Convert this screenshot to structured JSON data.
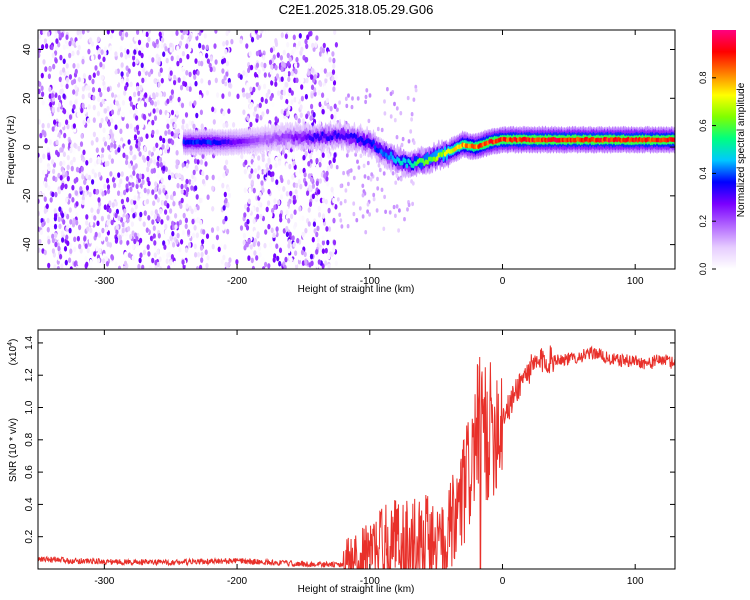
{
  "figure_title": "C2E1.2025.318.05.29.G06",
  "chart_data": [
    {
      "type": "heatmap",
      "title": "C2E1.2025.318.05.29.G06",
      "xlabel": "Height of straight line (km)",
      "ylabel": "Frequency (Hz)",
      "xlim": [
        -350,
        130
      ],
      "ylim": [
        -50,
        48
      ],
      "x_ticks": [
        -300,
        -200,
        -100,
        0,
        100
      ],
      "y_ticks": [
        -40,
        -20,
        0,
        20,
        40
      ],
      "colorbar": {
        "label": "Normalized spectral amplitude",
        "range": [
          0,
          1
        ],
        "ticks": [
          "0.0",
          "0.2",
          "0.4",
          "0.6",
          "0.8"
        ],
        "tick_values": [
          0,
          0.2,
          0.4,
          0.6,
          0.8
        ],
        "colors": [
          "#ffffff",
          "#e6ccff",
          "#b266ff",
          "#7a00ff",
          "#0000ff",
          "#00c8ff",
          "#00ff80",
          "#80ff00",
          "#ffff00",
          "#ff8000",
          "#ff0000",
          "#ff0080"
        ]
      },
      "ridge": {
        "x": [
          -240,
          -220,
          -200,
          -180,
          -160,
          -140,
          -120,
          -100,
          -90,
          -80,
          -70,
          -60,
          -50,
          -40,
          -30,
          -20,
          -10,
          0,
          20,
          40,
          60,
          80,
          100,
          130
        ],
        "frequency": [
          2,
          2,
          2,
          3,
          4,
          4,
          5,
          2,
          -2,
          -5,
          -7,
          -6,
          -4,
          -2,
          1,
          0,
          2,
          3,
          3,
          3,
          3,
          3,
          3,
          3
        ],
        "amplitude": [
          0.4,
          0.4,
          0.3,
          0.2,
          0.25,
          0.35,
          0.35,
          0.4,
          0.45,
          0.5,
          0.55,
          0.65,
          0.7,
          0.75,
          0.85,
          0.9,
          0.95,
          0.95,
          0.97,
          0.97,
          0.97,
          0.97,
          0.97,
          0.95
        ]
      },
      "noise_region_x": [
        -350,
        -125
      ]
    },
    {
      "type": "line",
      "xlabel": "Height of straight line (km)",
      "ylabel": "SNR (10 * v/v)",
      "y_scale_note": "(x10",
      "y_scale_exponent": "4",
      "y_scale_close": ")",
      "xlim": [
        -350,
        130
      ],
      "ylim": [
        0,
        14800
      ],
      "x_ticks": [
        -300,
        -200,
        -100,
        0,
        100
      ],
      "y_ticks": [
        2000,
        4000,
        6000,
        8000,
        10000,
        12000,
        14000
      ],
      "y_tick_labels": [
        "0.2",
        "0.4",
        "0.6",
        "0.8",
        "1.0",
        "1.2",
        "1.4"
      ],
      "series": [
        {
          "color": "#e8302a",
          "x": [
            -350,
            -300,
            -250,
            -200,
            -150,
            -120,
            -110,
            -100,
            -90,
            -80,
            -70,
            -60,
            -50,
            -45,
            -40,
            -35,
            -30,
            -25,
            -20,
            -18,
            -15,
            -12,
            -10,
            -5,
            0,
            5,
            10,
            15,
            20,
            30,
            40,
            50,
            60,
            70,
            80,
            90,
            100,
            110,
            120,
            130
          ],
          "y": [
            600,
            450,
            400,
            500,
            300,
            250,
            500,
            900,
            1800,
            2000,
            1400,
            2200,
            1000,
            800,
            1600,
            3000,
            4500,
            6000,
            8000,
            9200,
            10500,
            8000,
            8500,
            9000,
            9500,
            10000,
            11000,
            11800,
            12300,
            12900,
            13000,
            13000,
            13200,
            13400,
            13000,
            12900,
            12900,
            12700,
            13000,
            12700
          ]
        }
      ]
    }
  ]
}
